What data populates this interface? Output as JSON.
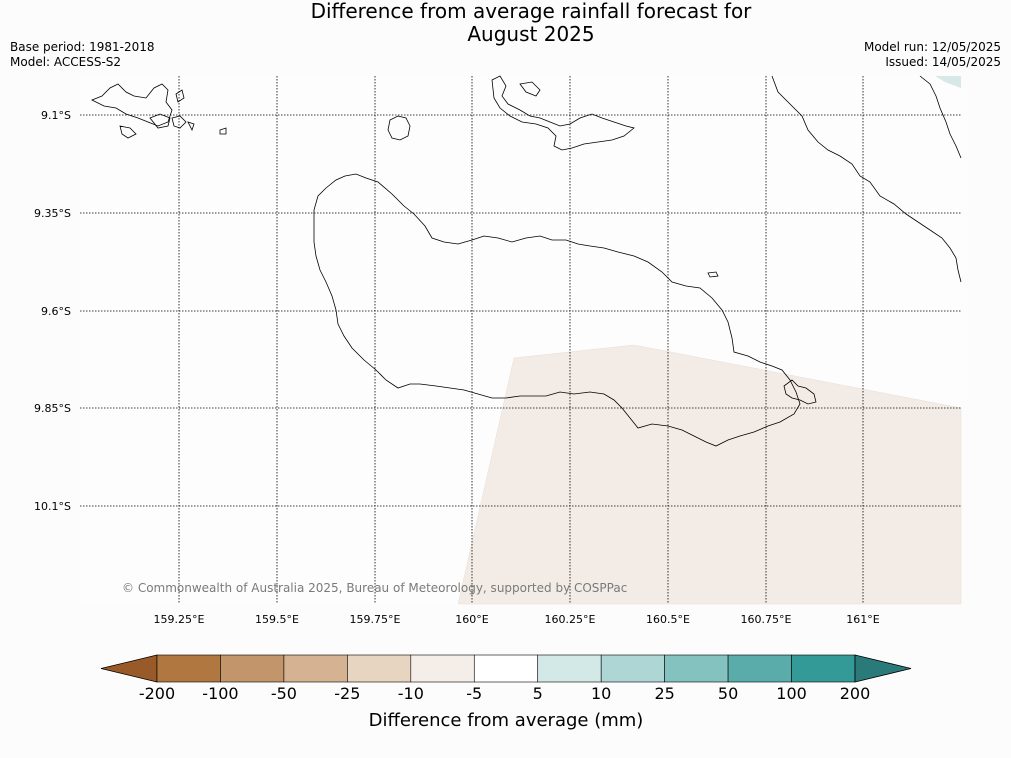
{
  "title": {
    "line1": "Difference from average rainfall forecast for",
    "line2": "August 2025"
  },
  "meta_left": {
    "base_period": "Base period: 1981-2018",
    "model": "Model: ACCESS-S2"
  },
  "meta_right": {
    "model_run": "Model run: 12/05/2025",
    "issued": "Issued: 14/05/2025"
  },
  "map": {
    "lat_labels": [
      "9.1°S",
      "9.35°S",
      "9.6°S",
      "9.85°S",
      "10.1°S"
    ],
    "lon_labels": [
      "159.25°E",
      "159.5°E",
      "159.75°E",
      "160°E",
      "160.25°E",
      "160.5°E",
      "160.75°E",
      "161°E"
    ],
    "copyright": "© Commonwealth of Australia 2025, Bureau of Meteorology, supported by COSPPac",
    "background_color": "#fdfdfd",
    "anomaly_fill_color": "#f3ece6",
    "anomaly_fill_category": "-10 to -5 mm"
  },
  "colorbar": {
    "ticks": [
      "-200",
      "-100",
      "-50",
      "-25",
      "-10",
      "-5",
      "5",
      "10",
      "25",
      "50",
      "100",
      "200"
    ],
    "colors": [
      "#975a28",
      "#b07740",
      "#c2956a",
      "#d5b292",
      "#e7d5c1",
      "#f5ede7",
      "#ffffff",
      "#d3e9e8",
      "#add6d5",
      "#83c2bf",
      "#5aacaa",
      "#339a98",
      "#2b7a7a"
    ],
    "label": "Difference from average (mm)"
  }
}
